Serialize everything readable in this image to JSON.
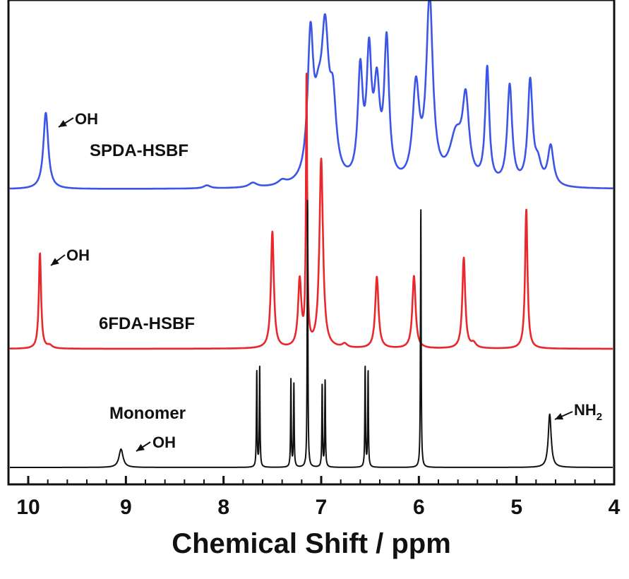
{
  "chart_data": {
    "type": "line",
    "title": "",
    "xlabel": "Chemical Shift / ppm",
    "ylabel": "",
    "xlim": [
      10.2,
      4.0
    ],
    "x_reversed": true,
    "xticks": [
      10,
      9,
      8,
      7,
      6,
      5,
      4
    ],
    "xtick_labels": [
      "10",
      "9",
      "8",
      "7",
      "6",
      "5",
      "4"
    ],
    "minor_xtick_step": 0.2,
    "grid": false,
    "legend": "none",
    "series": [
      {
        "name": "SPDA-HSBF",
        "color": "#3b55e6",
        "baseline": 0,
        "peaks": [
          {
            "x": 9.82,
            "h": 1.0,
            "w": 0.03
          },
          {
            "x": 8.17,
            "h": 0.04,
            "w": 0.04
          },
          {
            "x": 7.7,
            "h": 0.06,
            "w": 0.05
          },
          {
            "x": 7.4,
            "h": 0.06,
            "w": 0.05
          },
          {
            "x": 7.11,
            "h": 1.8,
            "w": 0.035
          },
          {
            "x": 7.03,
            "h": 0.7,
            "w": 0.05
          },
          {
            "x": 6.96,
            "h": 1.75,
            "w": 0.045
          },
          {
            "x": 6.88,
            "h": 0.9,
            "w": 0.04
          },
          {
            "x": 6.6,
            "h": 1.4,
            "w": 0.03
          },
          {
            "x": 6.51,
            "h": 1.55,
            "w": 0.03
          },
          {
            "x": 6.43,
            "h": 1.15,
            "w": 0.035
          },
          {
            "x": 6.33,
            "h": 1.8,
            "w": 0.03
          },
          {
            "x": 6.03,
            "h": 1.22,
            "w": 0.04
          },
          {
            "x": 5.89,
            "h": 2.4,
            "w": 0.04
          },
          {
            "x": 5.62,
            "h": 0.6,
            "w": 0.08
          },
          {
            "x": 5.52,
            "h": 1.0,
            "w": 0.04
          },
          {
            "x": 5.3,
            "h": 1.5,
            "w": 0.025
          },
          {
            "x": 5.07,
            "h": 1.3,
            "w": 0.03
          },
          {
            "x": 4.86,
            "h": 1.35,
            "w": 0.03
          },
          {
            "x": 4.78,
            "h": 0.25,
            "w": 0.04
          },
          {
            "x": 4.65,
            "h": 0.52,
            "w": 0.035
          }
        ]
      },
      {
        "name": "6FDA-HSBF",
        "color": "#e8282d",
        "baseline": 0,
        "peaks": [
          {
            "x": 9.88,
            "h": 1.0,
            "w": 0.014
          },
          {
            "x": 9.78,
            "h": 0.03,
            "w": 0.03
          },
          {
            "x": 7.5,
            "h": 1.22,
            "w": 0.018
          },
          {
            "x": 7.22,
            "h": 0.7,
            "w": 0.02
          },
          {
            "x": 7.15,
            "h": 2.8,
            "w": 0.008
          },
          {
            "x": 7.0,
            "h": 1.98,
            "w": 0.022
          },
          {
            "x": 6.76,
            "h": 0.04,
            "w": 0.03
          },
          {
            "x": 6.43,
            "h": 0.75,
            "w": 0.02
          },
          {
            "x": 6.05,
            "h": 0.76,
            "w": 0.02
          },
          {
            "x": 5.54,
            "h": 0.95,
            "w": 0.018
          },
          {
            "x": 5.44,
            "h": 0.05,
            "w": 0.03
          },
          {
            "x": 4.9,
            "h": 1.46,
            "w": 0.015
          }
        ]
      },
      {
        "name": "Monomer",
        "color": "#111111",
        "baseline": 0,
        "peaks": [
          {
            "x": 9.05,
            "h": 0.2,
            "w": 0.025
          },
          {
            "x": 7.66,
            "h": 1.05,
            "w": 0.004
          },
          {
            "x": 7.63,
            "h": 1.1,
            "w": 0.004
          },
          {
            "x": 7.31,
            "h": 0.95,
            "w": 0.004
          },
          {
            "x": 7.28,
            "h": 0.9,
            "w": 0.004
          },
          {
            "x": 7.14,
            "h": 2.95,
            "w": 0.004
          },
          {
            "x": 6.99,
            "h": 0.9,
            "w": 0.004
          },
          {
            "x": 6.96,
            "h": 0.95,
            "w": 0.004
          },
          {
            "x": 6.55,
            "h": 1.1,
            "w": 0.004
          },
          {
            "x": 6.52,
            "h": 1.05,
            "w": 0.004
          },
          {
            "x": 5.98,
            "h": 2.85,
            "w": 0.004
          },
          {
            "x": 4.66,
            "h": 0.58,
            "w": 0.018
          }
        ]
      }
    ],
    "annotations": [
      {
        "series": "SPDA-HSBF",
        "text": "OH",
        "x": 9.82
      },
      {
        "series": "6FDA-HSBF",
        "text": "OH",
        "x": 9.88
      },
      {
        "series": "Monomer",
        "text": "OH",
        "x": 9.05
      },
      {
        "series": "Monomer",
        "text": "NH",
        "subscript": "2",
        "x": 4.66
      }
    ]
  }
}
